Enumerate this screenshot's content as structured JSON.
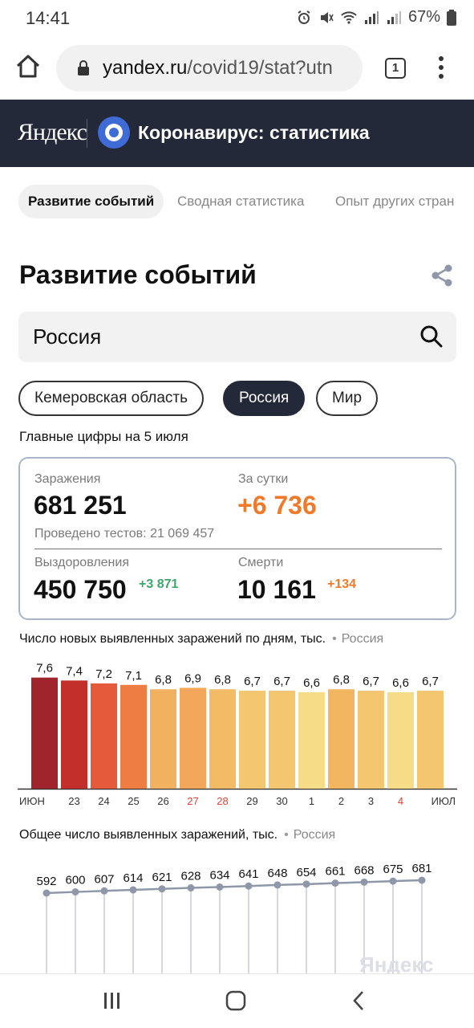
{
  "status_bar": {
    "time": "14:41",
    "battery": "67%"
  },
  "browser": {
    "url_host": "yandex.ru",
    "url_path": "/covid19/stat?utn",
    "tab_count": "1"
  },
  "header": {
    "logo": "Яндекс",
    "title": "Коронавирус: статистика"
  },
  "tabs": [
    {
      "label": "Развитие событий",
      "active": true
    },
    {
      "label": "Сводная статистика",
      "active": false
    },
    {
      "label": "Опыт других стран",
      "active": false
    }
  ],
  "page_title": "Развитие событий",
  "search": {
    "value": "Россия"
  },
  "chips": [
    {
      "label": "Кемеровская область",
      "active": false
    },
    {
      "label": "Россия",
      "active": true
    },
    {
      "label": "Мир",
      "active": false
    }
  ],
  "subtitle": "Главные цифры на 5 июля",
  "stats": {
    "infections_label": "Заражения",
    "infections_value": "681 251",
    "daily_label": "За сутки",
    "daily_value": "+6 736",
    "tests_note": "Проведено тестов: 21 069 457",
    "recoveries_label": "Выздоровления",
    "recoveries_value": "450 750",
    "recoveries_delta": "+3 871",
    "deaths_label": "Смерти",
    "deaths_value": "10 161",
    "deaths_delta": "+134"
  },
  "colors": {
    "header_bg": "#242939",
    "accent_orange": "#f07a2a",
    "accent_green": "#3aa86b",
    "yandex_blue": "#3f6bd7"
  },
  "chart_data": [
    {
      "type": "bar",
      "title": "Число новых выявленных заражений по дням, тыс.",
      "region": "Россия",
      "categories": [
        "ИЮН",
        "23",
        "24",
        "25",
        "26",
        "27",
        "28",
        "29",
        "30",
        "1",
        "2",
        "3",
        "4",
        "ИЮЛ"
      ],
      "weekend_categories": [
        "27",
        "28",
        "4"
      ],
      "values": [
        7.6,
        7.4,
        7.2,
        7.1,
        6.8,
        6.9,
        6.8,
        6.7,
        6.7,
        6.6,
        6.8,
        6.7,
        6.6,
        6.7
      ],
      "value_labels": [
        "7,6",
        "7,4",
        "7,2",
        "7,1",
        "6,8",
        "6,9",
        "6,8",
        "6,7",
        "6,7",
        "6,6",
        "6,8",
        "6,7",
        "6,6",
        "6,7"
      ],
      "bar_colors": [
        "#a0242b",
        "#c3302c",
        "#e55a3b",
        "#ed7d43",
        "#f2b15f",
        "#f2a75a",
        "#f3bb66",
        "#f4c670",
        "#f4c670",
        "#f7dc87",
        "#f2b661",
        "#f4c670",
        "#f7dc87",
        "#f4c670"
      ]
    },
    {
      "type": "line",
      "title": "Общее число выявленных заражений, тыс.",
      "region": "Россия",
      "values": [
        592,
        600,
        607,
        614,
        621,
        628,
        634,
        641,
        648,
        654,
        661,
        668,
        675,
        681
      ],
      "value_labels": [
        "592",
        "600",
        "607",
        "614",
        "621",
        "628",
        "634",
        "641",
        "648",
        "654",
        "661",
        "668",
        "675",
        "681"
      ]
    }
  ],
  "watermark": "Яндекс"
}
